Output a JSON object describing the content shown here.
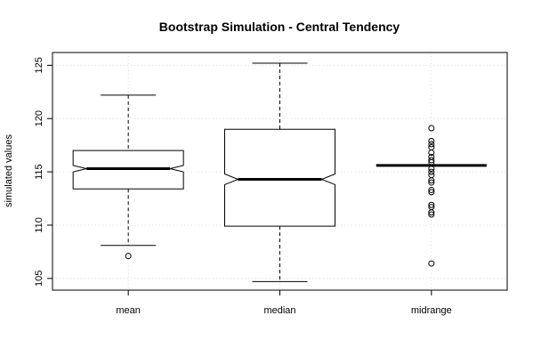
{
  "chart_data": {
    "type": "boxplot",
    "title": "Bootstrap Simulation - Central Tendency",
    "xlabel": "",
    "ylabel": "simulated values",
    "ylim": [
      103.9,
      126.2
    ],
    "yticks": [
      105,
      110,
      115,
      120,
      125
    ],
    "grid": true,
    "notched": true,
    "categories": [
      "mean",
      "median",
      "midrange"
    ],
    "boxes": [
      {
        "name": "mean",
        "whisker_low": 108.1,
        "q1": 113.4,
        "median": 115.3,
        "q3": 117.0,
        "whisker_high": 122.2,
        "notch_low": 115.0,
        "notch_high": 115.6,
        "outliers": [
          107.1
        ]
      },
      {
        "name": "median",
        "whisker_low": 104.7,
        "q1": 109.9,
        "median": 114.3,
        "q3": 119.0,
        "whisker_high": 125.2,
        "notch_low": 113.8,
        "notch_high": 114.8,
        "outliers": []
      },
      {
        "name": "midrange",
        "whisker_low": 115.6,
        "q1": 115.6,
        "median": 115.6,
        "q3": 115.6,
        "whisker_high": 115.6,
        "notch_low": 115.6,
        "notch_high": 115.6,
        "outliers": [
          106.4,
          111.0,
          111.2,
          111.7,
          111.9,
          113.1,
          113.3,
          114.0,
          114.2,
          114.7,
          115.0,
          115.3,
          115.9,
          116.1,
          116.4,
          116.8,
          117.3,
          117.6,
          117.9,
          119.1
        ]
      }
    ]
  }
}
